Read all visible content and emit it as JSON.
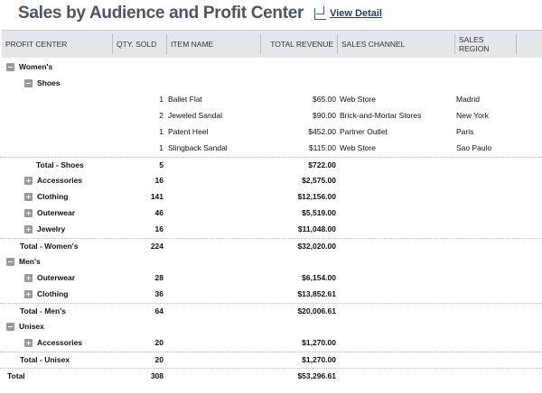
{
  "title": "Sales by Audience and Profit Center",
  "view_detail": "View Detail",
  "columns": [
    "PROFIT CENTER",
    "QTY. SOLD",
    "ITEM NAME",
    "TOTAL REVENUE",
    "SALES CHANNEL",
    "SALES REGION"
  ],
  "rows": [
    {
      "level": 0,
      "toggle": "minus",
      "label": "Women's",
      "bold": true
    },
    {
      "level": 1,
      "toggle": "minus",
      "label": "Shoes",
      "bold": true
    },
    {
      "level": 2,
      "qty": "1",
      "item": "Ballet Flat",
      "revenue": "$65.00",
      "channel": "Web Store",
      "region": "Madrid"
    },
    {
      "level": 2,
      "qty": "2",
      "item": "Jeweled Sandal",
      "revenue": "$90.00",
      "channel": "Brick-and-Mortar Stores",
      "region": "New York"
    },
    {
      "level": 2,
      "qty": "1",
      "item": "Patent Heel",
      "revenue": "$452.00",
      "channel": "Partner Outlet",
      "region": "Paris"
    },
    {
      "level": 2,
      "qty": "1",
      "item": "Slingback Sandal",
      "revenue": "$115.00",
      "channel": "Web Store",
      "region": "Sao Paulo"
    },
    {
      "level": 2,
      "label": "Total - Shoes",
      "qty": "5",
      "revenue": "$722.00",
      "bold": true,
      "dot": true,
      "total": true
    },
    {
      "level": 1,
      "toggle": "plus",
      "label": "Accessories",
      "qty": "16",
      "revenue": "$2,575.00",
      "bold": true
    },
    {
      "level": 1,
      "toggle": "plus",
      "label": "Clothing",
      "qty": "141",
      "revenue": "$12,156.00",
      "bold": true
    },
    {
      "level": 1,
      "toggle": "plus",
      "label": "Outerwear",
      "qty": "46",
      "revenue": "$5,519.00",
      "bold": true
    },
    {
      "level": 1,
      "toggle": "plus",
      "label": "Jewelry",
      "qty": "16",
      "revenue": "$11,048.00",
      "bold": true
    },
    {
      "level": 1,
      "label": "Total - Women's",
      "qty": "224",
      "revenue": "$32,020.00",
      "bold": true,
      "dot": true,
      "total": true
    },
    {
      "level": 0,
      "toggle": "minus",
      "label": "Men's",
      "bold": true
    },
    {
      "level": 1,
      "toggle": "plus",
      "label": "Outerwear",
      "qty": "28",
      "revenue": "$6,154.00",
      "bold": true
    },
    {
      "level": 1,
      "toggle": "plus",
      "label": "Clothing",
      "qty": "36",
      "revenue": "$13,852.61",
      "bold": true
    },
    {
      "level": 1,
      "label": "Total - Men's",
      "qty": "64",
      "revenue": "$20,006.61",
      "bold": true,
      "dot": true,
      "total": true
    },
    {
      "level": 0,
      "toggle": "minus",
      "label": "Unisex",
      "bold": true
    },
    {
      "level": 1,
      "toggle": "plus",
      "label": "Accessories",
      "qty": "20",
      "revenue": "$1,270.00",
      "bold": true
    },
    {
      "level": 1,
      "label": "Total - Unisex",
      "qty": "20",
      "revenue": "$1,270.00",
      "bold": true,
      "dot": true,
      "total": true
    },
    {
      "level": 0,
      "label": "Total",
      "qty": "308",
      "revenue": "$53,296.61",
      "bold": true,
      "dot": true,
      "total": true
    }
  ]
}
